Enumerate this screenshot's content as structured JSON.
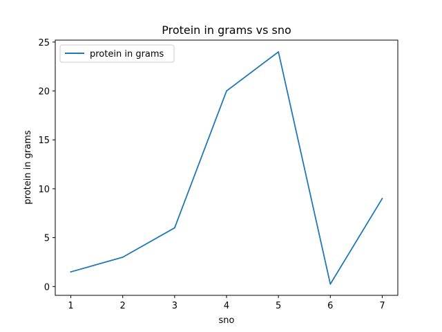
{
  "chart_data": {
    "type": "line",
    "title": "Protein in grams vs sno",
    "xlabel": "sno",
    "ylabel": "protein in grams",
    "x": [
      1,
      2,
      3,
      4,
      5,
      6,
      7
    ],
    "series": [
      {
        "name": "protein in grams",
        "values": [
          1.5,
          3.0,
          6.0,
          20.0,
          24.0,
          0.25,
          9.0
        ],
        "color": "#1f77b4"
      }
    ],
    "xticks": [
      "1",
      "2",
      "3",
      "4",
      "5",
      "6",
      "7"
    ],
    "yticks": [
      "0",
      "5",
      "10",
      "15",
      "20",
      "25"
    ],
    "xlim": [
      0.7,
      7.3
    ],
    "ylim": [
      -0.9,
      25.2
    ],
    "grid": false,
    "legend_position": "upper-left"
  }
}
